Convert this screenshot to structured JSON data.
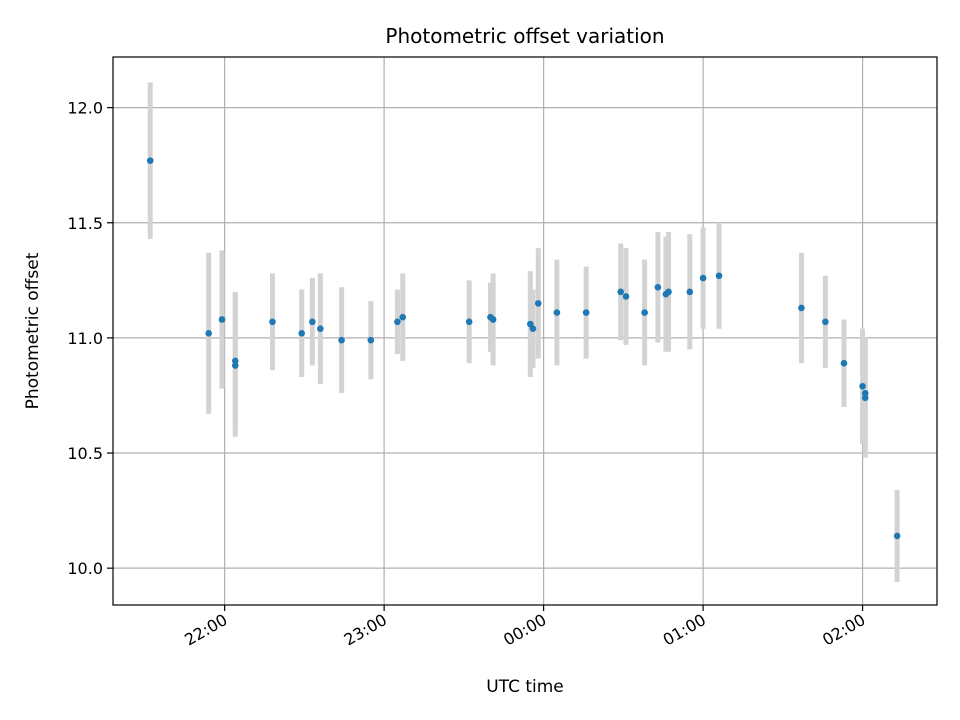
{
  "chart_data": {
    "type": "scatter",
    "title": "Photometric offset variation",
    "xlabel": "UTC time",
    "ylabel": "Photometric offset",
    "x_ticks": [
      "22:00",
      "23:00",
      "00:00",
      "01:00",
      "02:00"
    ],
    "y_ticks": [
      "10.0",
      "10.5",
      "11.0",
      "11.5",
      "12.0"
    ],
    "xlim": [
      "21:18",
      "02:28"
    ],
    "ylim": [
      9.84,
      12.22
    ],
    "grid": true,
    "colors": {
      "point": "#1f77b4",
      "errorbar": "#d3d3d3",
      "grid": "#b0b0b0"
    },
    "points": [
      {
        "t": "21:32",
        "y": 11.77,
        "err": 0.34
      },
      {
        "t": "21:54",
        "y": 11.02,
        "err": 0.35
      },
      {
        "t": "21:59",
        "y": 11.08,
        "err": 0.3
      },
      {
        "t": "22:04",
        "y": 10.88,
        "err": 0.31
      },
      {
        "t": "22:04",
        "y": 10.9,
        "err": 0.3
      },
      {
        "t": "22:18",
        "y": 11.07,
        "err": 0.21
      },
      {
        "t": "22:29",
        "y": 11.02,
        "err": 0.19
      },
      {
        "t": "22:33",
        "y": 11.07,
        "err": 0.19
      },
      {
        "t": "22:36",
        "y": 11.04,
        "err": 0.24
      },
      {
        "t": "22:44",
        "y": 10.99,
        "err": 0.23
      },
      {
        "t": "22:55",
        "y": 10.99,
        "err": 0.17
      },
      {
        "t": "23:05",
        "y": 11.07,
        "err": 0.14
      },
      {
        "t": "23:07",
        "y": 11.09,
        "err": 0.19
      },
      {
        "t": "23:32",
        "y": 11.07,
        "err": 0.18
      },
      {
        "t": "23:40",
        "y": 11.09,
        "err": 0.15
      },
      {
        "t": "23:41",
        "y": 11.08,
        "err": 0.2
      },
      {
        "t": "23:55",
        "y": 11.06,
        "err": 0.23
      },
      {
        "t": "23:56",
        "y": 11.04,
        "err": 0.17
      },
      {
        "t": "23:58",
        "y": 11.15,
        "err": 0.24
      },
      {
        "t": "00:05",
        "y": 11.11,
        "err": 0.23
      },
      {
        "t": "00:16",
        "y": 11.11,
        "err": 0.2
      },
      {
        "t": "00:29",
        "y": 11.2,
        "err": 0.21
      },
      {
        "t": "00:31",
        "y": 11.18,
        "err": 0.21
      },
      {
        "t": "00:38",
        "y": 11.11,
        "err": 0.23
      },
      {
        "t": "00:43",
        "y": 11.22,
        "err": 0.24
      },
      {
        "t": "00:46",
        "y": 11.19,
        "err": 0.25
      },
      {
        "t": "00:47",
        "y": 11.2,
        "err": 0.26
      },
      {
        "t": "00:55",
        "y": 11.2,
        "err": 0.25
      },
      {
        "t": "00:60",
        "y": 11.26,
        "err": 0.22
      },
      {
        "t": "01:06",
        "y": 11.27,
        "err": 0.23
      },
      {
        "t": "01:37",
        "y": 11.13,
        "err": 0.24
      },
      {
        "t": "01:46",
        "y": 11.07,
        "err": 0.2
      },
      {
        "t": "01:53",
        "y": 10.89,
        "err": 0.19
      },
      {
        "t": "02:00",
        "y": 10.79,
        "err": 0.25
      },
      {
        "t": "02:01",
        "y": 10.76,
        "err": 0.24
      },
      {
        "t": "02:01",
        "y": 10.74,
        "err": 0.26
      },
      {
        "t": "02:13",
        "y": 10.14,
        "err": 0.2
      }
    ]
  }
}
